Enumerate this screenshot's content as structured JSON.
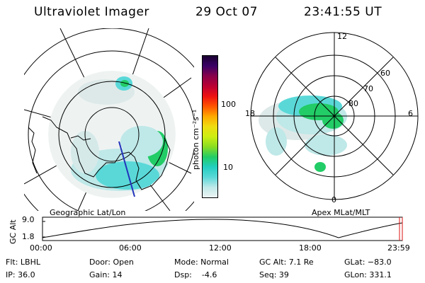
{
  "header": {
    "instrument": "Ultraviolet Imager",
    "date": "29 Oct 07",
    "time": "23:41:55 UT"
  },
  "left_panel": {
    "caption": "Geographic Lat/Lon"
  },
  "right_panel": {
    "caption": "Apex MLat/MLT",
    "mlt_labels": {
      "top": "12",
      "left": "18",
      "right": "6",
      "bottom": "0"
    },
    "lat_labels": [
      "60",
      "70",
      "80"
    ]
  },
  "colorbar": {
    "unit_label": "photon cm⁻²s⁻¹",
    "tick_labels": [
      "100",
      "10"
    ],
    "colors": [
      "#eef4f4",
      "#bfe8e8",
      "#5ad8d8",
      "#22cfc0",
      "#22cc66",
      "#88dd22",
      "#ccee11",
      "#eedd11",
      "#ffaa00",
      "#ff5500",
      "#ee1111",
      "#bb0033",
      "#88004a",
      "#3a0066",
      "#1a0030"
    ]
  },
  "altitude": {
    "axis_label": "GC Alt",
    "y_ticks": [
      "9.0",
      "1.8"
    ],
    "x_ticks": [
      "00:00",
      "06:00",
      "12:00",
      "18:00",
      "23:59"
    ]
  },
  "footer": {
    "flt": "Flt: LBHL",
    "ip": "IP: 36.0",
    "door": "Door: Open",
    "gain": "Gain: 14",
    "mode": "Mode: Normal",
    "dsp": "Dsp:    -4.6",
    "gc_alt": "GC Alt: 7.1 Re",
    "seq": "Seq: 39",
    "glat": "GLat: −83.0",
    "glon": "GLon: 331.1"
  }
}
